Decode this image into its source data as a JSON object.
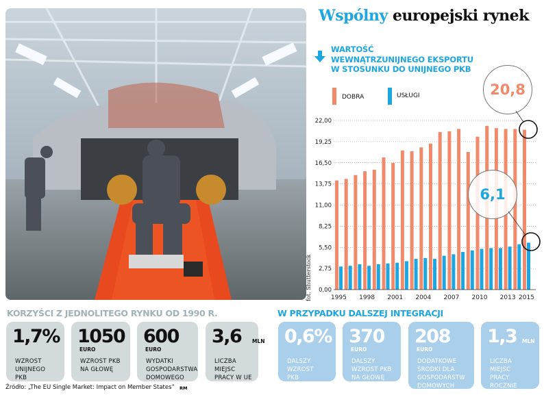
{
  "header": {
    "title_accent": "Wspólny",
    "title_rest": "europejski rynek"
  },
  "photo": {
    "credit": "fot. Shutterstock"
  },
  "chart_data": {
    "type": "bar",
    "title": "WARTOŚĆ WEWNĄTRZUNIJNEGO EKSPORTU W STOSUNKU DO UNIJNEGO PKB",
    "title_lines": [
      "WARTOŚĆ",
      "WEWNĄTRZUNIJNEGO EKSPORTU",
      "W STOSUNKU DO UNIJNEGO PKB"
    ],
    "categories": [
      1995,
      1996,
      1997,
      1998,
      1999,
      2000,
      2001,
      2002,
      2003,
      2004,
      2005,
      2006,
      2007,
      2008,
      2009,
      2010,
      2011,
      2012,
      2013,
      2014,
      2015
    ],
    "x_tick_labels": [
      "1995",
      "1998",
      "2001",
      "2004",
      "2007",
      "2010",
      "2013",
      "2015"
    ],
    "y_tick_labels": [
      "0,00",
      "2,75",
      "5,50",
      "8,25",
      "11,00",
      "13,75",
      "16,50",
      "19,25",
      "22,00"
    ],
    "ylim": [
      0,
      22
    ],
    "grid": "horizontal dotted",
    "legend_placement": "top",
    "series": [
      {
        "name": "DOBRA",
        "color": "#f08a6b",
        "values": [
          14.2,
          14.4,
          14.9,
          15.4,
          15.6,
          17.2,
          16.5,
          18.1,
          18.0,
          18.5,
          19.0,
          20.5,
          20.6,
          20.9,
          17.9,
          19.9,
          21.3,
          21.0,
          20.9,
          20.9,
          20.8
        ]
      },
      {
        "name": "USŁUGI",
        "color": "#1ea6e0",
        "values": [
          3.0,
          3.1,
          3.3,
          3.1,
          3.3,
          3.4,
          3.5,
          3.7,
          4.0,
          4.1,
          4.0,
          4.4,
          4.6,
          4.9,
          5.1,
          5.3,
          5.4,
          5.4,
          5.6,
          5.9,
          6.1
        ]
      }
    ],
    "annotations": [
      {
        "series": "DOBRA",
        "year": 2015,
        "label": "20,8"
      },
      {
        "series": "USŁUGI",
        "year": 2015,
        "label": "6,1"
      }
    ]
  },
  "benefits": {
    "title": "KORZYŚCI Z JEDNOLITEGO RYNKU OD 1990 R.",
    "cards": [
      {
        "value": "1,7%",
        "unit": "",
        "desc": [
          "WZROST",
          "UNIJNEGO",
          "PKB"
        ]
      },
      {
        "value": "1050",
        "unit": "EURO",
        "desc": [
          "WZROST PKB",
          "NA GŁOWĘ"
        ]
      },
      {
        "value": "600",
        "unit": "EURO",
        "desc": [
          "WYDATKI",
          "GOSPODARSTWA",
          "DOMOWEGO"
        ]
      },
      {
        "value": "3,6",
        "unit": "MLN",
        "desc": [
          "LICZBA",
          "MIEJSC",
          "PRACY W UE"
        ]
      }
    ],
    "source": "Źródło: „The EU Single Market: Impact on Member States”",
    "author": "RM"
  },
  "integration": {
    "title": "W PRZYPADKU DALSZEJ INTEGRACJI",
    "cards": [
      {
        "value": "0,6%",
        "unit": "",
        "desc": [
          "DALSZY",
          "WZROST",
          "PKB"
        ]
      },
      {
        "value": "370",
        "unit": "EURO",
        "desc": [
          "DALSZY",
          "WZROST PKB",
          "NA GŁOWĘ"
        ]
      },
      {
        "value": "208",
        "unit": "EURO",
        "desc": [
          "DODATKOWE",
          "ŚRODKI DLA",
          "GOSPODARSTW",
          "DOMOWYCH"
        ]
      },
      {
        "value": "1,3",
        "unit": "MLN",
        "desc": [
          "LICZBA",
          "MIEJSC",
          "PRACY",
          "ROCZNIE"
        ]
      }
    ]
  },
  "colors": {
    "accent_blue": "#1ea6e0",
    "orange": "#f08a6b",
    "grey_card": "#d2dadb",
    "blue_card": "#a9cfea",
    "section_grey": "#9fb3b6"
  }
}
